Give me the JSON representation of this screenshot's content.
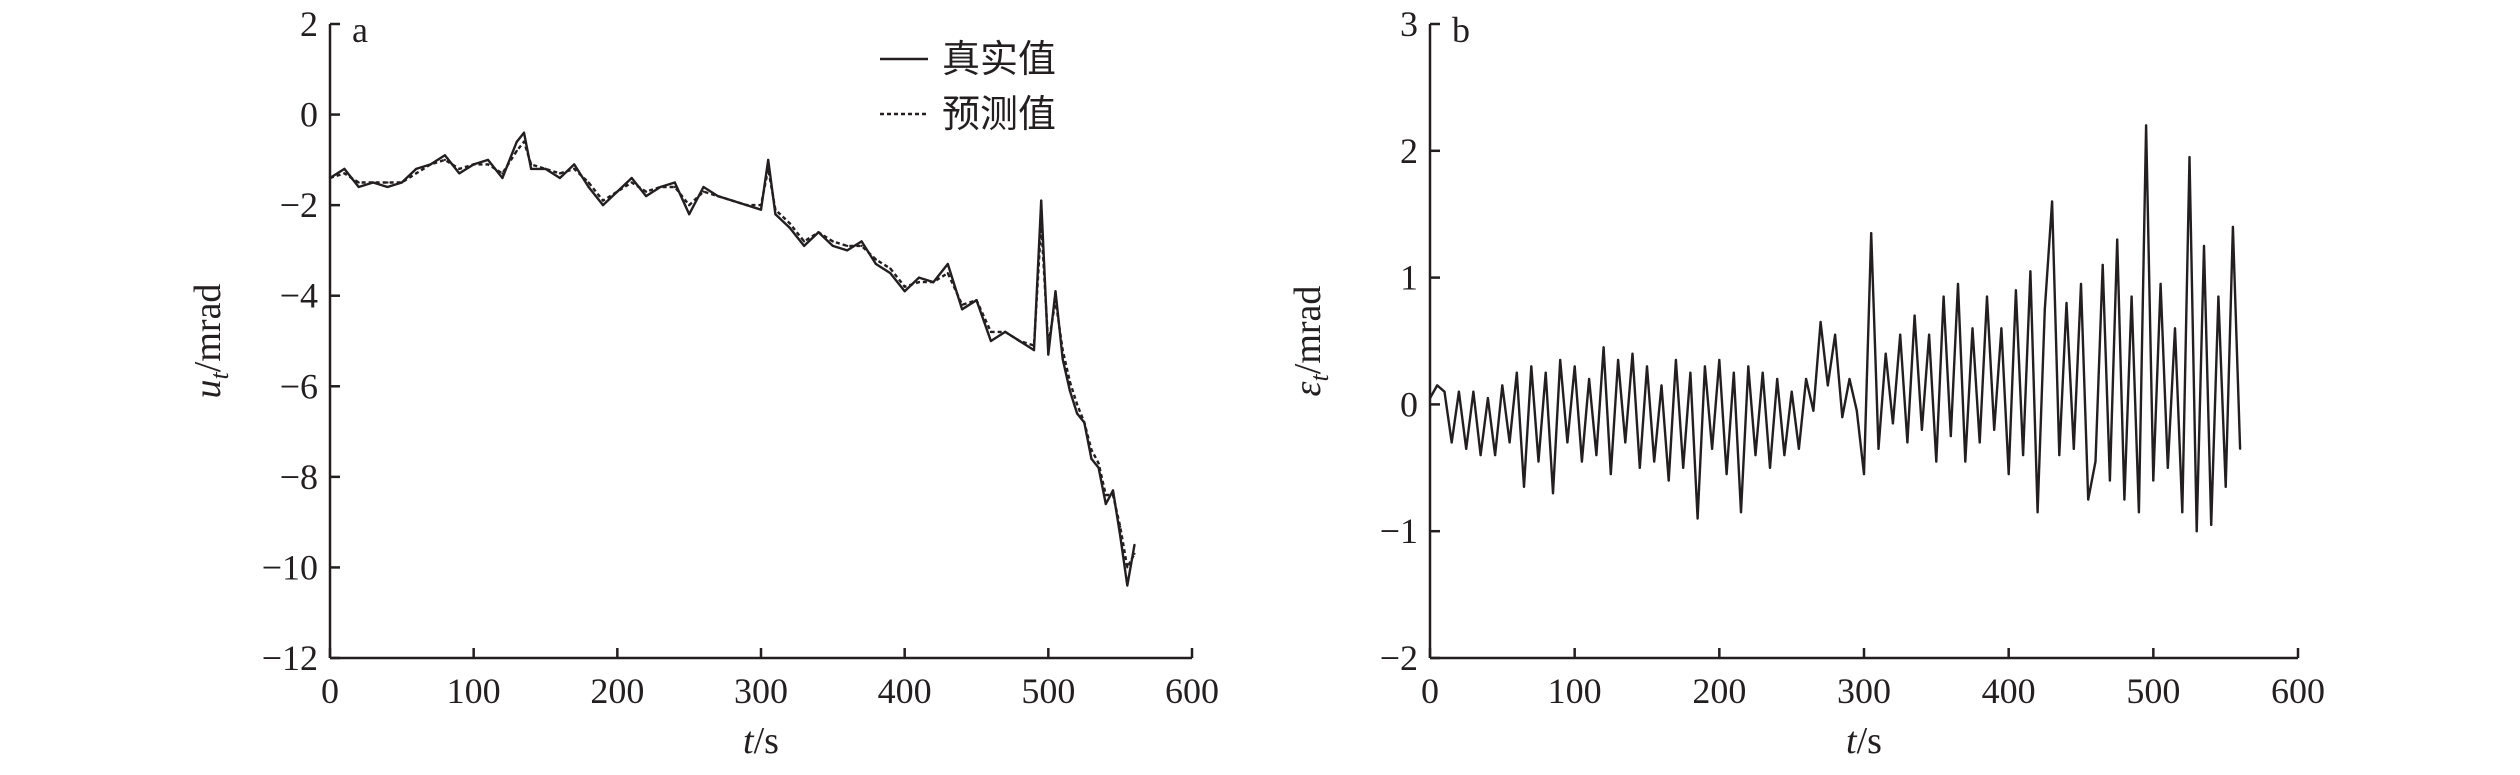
{
  "chart_data": [
    {
      "type": "line",
      "panel_label": "a",
      "xlabel": {
        "var": "t",
        "unit": "/s"
      },
      "ylabel": {
        "var": "u",
        "sub": "t",
        "unit": "/mrad"
      },
      "xlim": [
        0,
        600
      ],
      "ylim": [
        -12,
        2
      ],
      "xticks": [
        0,
        100,
        200,
        300,
        400,
        500,
        600
      ],
      "yticks": [
        2,
        0,
        -2,
        -4,
        -6,
        -8,
        -10,
        -12
      ],
      "grid": false,
      "legend": "top-right",
      "series": [
        {
          "name": "真实值",
          "style": "solid",
          "color": "#231f20",
          "x": [
            0,
            10,
            20,
            30,
            40,
            50,
            60,
            70,
            80,
            90,
            100,
            110,
            120,
            130,
            135,
            140,
            150,
            160,
            170,
            180,
            190,
            200,
            210,
            220,
            230,
            240,
            250,
            260,
            270,
            280,
            290,
            300,
            305,
            310,
            320,
            330,
            340,
            350,
            360,
            370,
            380,
            390,
            400,
            410,
            420,
            430,
            440,
            450,
            460,
            470,
            480,
            490,
            495,
            500,
            505,
            510,
            515,
            520,
            525,
            530,
            535,
            540,
            545,
            550,
            555,
            560
          ],
          "y": [
            -1.4,
            -1.2,
            -1.6,
            -1.5,
            -1.6,
            -1.5,
            -1.2,
            -1.1,
            -0.9,
            -1.3,
            -1.1,
            -1.0,
            -1.4,
            -0.6,
            -0.4,
            -1.2,
            -1.2,
            -1.4,
            -1.1,
            -1.6,
            -2.0,
            -1.7,
            -1.4,
            -1.8,
            -1.6,
            -1.5,
            -2.2,
            -1.6,
            -1.8,
            -1.9,
            -2.0,
            -2.1,
            -1.0,
            -2.2,
            -2.5,
            -2.9,
            -2.6,
            -2.9,
            -3.0,
            -2.8,
            -3.3,
            -3.5,
            -3.9,
            -3.6,
            -3.7,
            -3.3,
            -4.3,
            -4.1,
            -5.0,
            -4.8,
            -5.0,
            -5.2,
            -1.9,
            -5.3,
            -3.9,
            -5.4,
            -6.1,
            -6.6,
            -6.8,
            -7.6,
            -7.8,
            -8.6,
            -8.3,
            -9.3,
            -10.4,
            -9.5
          ]
        },
        {
          "name": "预测值",
          "style": "dotted",
          "color": "#231f20",
          "x": [
            0,
            10,
            20,
            30,
            40,
            50,
            60,
            70,
            80,
            90,
            100,
            110,
            120,
            130,
            135,
            140,
            150,
            160,
            170,
            180,
            190,
            200,
            210,
            220,
            230,
            240,
            250,
            260,
            270,
            280,
            290,
            300,
            305,
            310,
            320,
            330,
            340,
            350,
            360,
            370,
            380,
            390,
            400,
            410,
            420,
            430,
            440,
            450,
            460,
            470,
            480,
            490,
            495,
            500,
            505,
            510,
            515,
            520,
            525,
            530,
            535,
            540,
            545,
            550,
            555,
            560
          ],
          "y": [
            -1.4,
            -1.3,
            -1.5,
            -1.5,
            -1.5,
            -1.5,
            -1.3,
            -1.1,
            -1.0,
            -1.2,
            -1.1,
            -1.1,
            -1.3,
            -0.8,
            -0.6,
            -1.1,
            -1.2,
            -1.3,
            -1.2,
            -1.5,
            -1.9,
            -1.7,
            -1.5,
            -1.7,
            -1.6,
            -1.6,
            -2.0,
            -1.7,
            -1.8,
            -1.9,
            -2.0,
            -2.0,
            -1.2,
            -2.1,
            -2.4,
            -2.8,
            -2.6,
            -2.8,
            -2.9,
            -2.9,
            -3.2,
            -3.4,
            -3.8,
            -3.7,
            -3.7,
            -3.5,
            -4.2,
            -4.1,
            -4.8,
            -4.8,
            -5.0,
            -5.1,
            -2.4,
            -5.1,
            -4.1,
            -5.2,
            -5.9,
            -6.4,
            -6.8,
            -7.4,
            -7.7,
            -8.4,
            -8.4,
            -9.1,
            -10.0,
            -9.7
          ]
        }
      ]
    },
    {
      "type": "line",
      "panel_label": "b",
      "xlabel": {
        "var": "t",
        "unit": "/s"
      },
      "ylabel": {
        "var": "ε",
        "sub": "t",
        "unit": "/mrad"
      },
      "xlim": [
        0,
        600
      ],
      "ylim": [
        -2,
        3
      ],
      "xticks": [
        0,
        100,
        200,
        300,
        400,
        500,
        600
      ],
      "yticks": [
        3,
        2,
        1,
        0,
        -1,
        -2
      ],
      "grid": false,
      "series": [
        {
          "color": "#231f20",
          "x": [
            0,
            5,
            10,
            15,
            20,
            25,
            30,
            35,
            40,
            45,
            50,
            55,
            60,
            65,
            70,
            75,
            80,
            85,
            90,
            95,
            100,
            105,
            110,
            115,
            120,
            125,
            130,
            135,
            140,
            145,
            150,
            155,
            160,
            165,
            170,
            175,
            180,
            185,
            190,
            195,
            200,
            205,
            210,
            215,
            220,
            225,
            230,
            235,
            240,
            245,
            250,
            255,
            260,
            265,
            270,
            275,
            280,
            285,
            290,
            295,
            300,
            305,
            310,
            315,
            320,
            325,
            330,
            335,
            340,
            345,
            350,
            355,
            360,
            365,
            370,
            375,
            380,
            385,
            390,
            395,
            400,
            405,
            410,
            415,
            420,
            425,
            430,
            435,
            440,
            445,
            450,
            455,
            460,
            465,
            470,
            475,
            480,
            485,
            490,
            495,
            500,
            505,
            510,
            515,
            520,
            525,
            530,
            535,
            540,
            545,
            550,
            555,
            560
          ],
          "y": [
            0.05,
            0.15,
            0.1,
            -0.3,
            0.1,
            -0.35,
            0.1,
            -0.4,
            0.05,
            -0.4,
            0.15,
            -0.3,
            0.25,
            -0.65,
            0.3,
            -0.45,
            0.25,
            -0.7,
            0.35,
            -0.3,
            0.3,
            -0.45,
            0.2,
            -0.4,
            0.45,
            -0.55,
            0.35,
            -0.3,
            0.4,
            -0.5,
            0.3,
            -0.45,
            0.15,
            -0.6,
            0.35,
            -0.5,
            0.25,
            -0.9,
            0.3,
            -0.35,
            0.35,
            -0.55,
            0.25,
            -0.85,
            0.3,
            -0.4,
            0.25,
            -0.5,
            0.2,
            -0.4,
            0.1,
            -0.35,
            0.2,
            -0.05,
            0.65,
            0.15,
            0.55,
            -0.1,
            0.2,
            -0.05,
            -0.55,
            1.35,
            -0.35,
            0.4,
            -0.15,
            0.55,
            -0.3,
            0.7,
            -0.2,
            0.55,
            -0.45,
            0.85,
            -0.25,
            0.95,
            -0.45,
            0.6,
            -0.3,
            0.85,
            -0.2,
            0.6,
            -0.55,
            0.9,
            -0.4,
            1.05,
            -0.85,
            0.75,
            1.6,
            -0.4,
            0.8,
            -0.35,
            0.95,
            -0.75,
            -0.45,
            1.1,
            -0.6,
            1.3,
            -0.75,
            0.85,
            -0.85,
            2.2,
            -0.6,
            0.95,
            -0.5,
            0.6,
            -0.85,
            1.95,
            -1.0,
            1.25,
            -0.95,
            0.85,
            -0.65,
            1.4,
            -0.35
          ]
        }
      ]
    }
  ]
}
